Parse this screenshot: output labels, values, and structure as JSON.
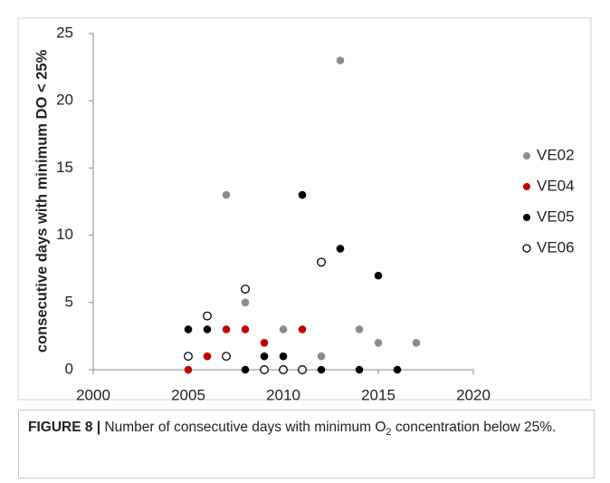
{
  "chart_data": {
    "type": "scatter",
    "ylabel": "consecutive days  with minimum DO < 25%",
    "xlim": [
      2000,
      2020
    ],
    "xticks": [
      2000,
      2005,
      2010,
      2015,
      2020
    ],
    "ylim": [
      0,
      25
    ],
    "yticks": [
      0,
      5,
      10,
      15,
      20,
      25
    ],
    "legend": "right",
    "series": [
      {
        "name": "VE02",
        "color": "#8c8c8c",
        "open": false,
        "x": [
          2007,
          2008,
          2010,
          2012,
          2013,
          2014,
          2015,
          2017
        ],
        "values": [
          13,
          5,
          3,
          1,
          23,
          3,
          2,
          2
        ]
      },
      {
        "name": "VE04",
        "color": "#c00000",
        "open": false,
        "x": [
          2005,
          2006,
          2007,
          2008,
          2009,
          2011
        ],
        "values": [
          0,
          1,
          3,
          3,
          2,
          3
        ]
      },
      {
        "name": "VE05",
        "color": "#000000",
        "open": false,
        "x": [
          2005,
          2006,
          2008,
          2009,
          2010,
          2011,
          2012,
          2013,
          2014,
          2015,
          2016
        ],
        "values": [
          3,
          3,
          0,
          1,
          1,
          13,
          0,
          9,
          0,
          7,
          0
        ]
      },
      {
        "name": "VE06",
        "color": "#000000",
        "open": true,
        "x": [
          2005,
          2006,
          2007,
          2008,
          2009,
          2010,
          2011,
          2012
        ],
        "values": [
          1,
          4,
          1,
          6,
          0,
          0,
          0,
          8
        ]
      }
    ]
  },
  "caption": {
    "label": "FIGURE 8 |",
    "text_before": "Number of consecutive days with minimum O",
    "subscript": "2",
    "text_after": " concentration below 25%."
  }
}
